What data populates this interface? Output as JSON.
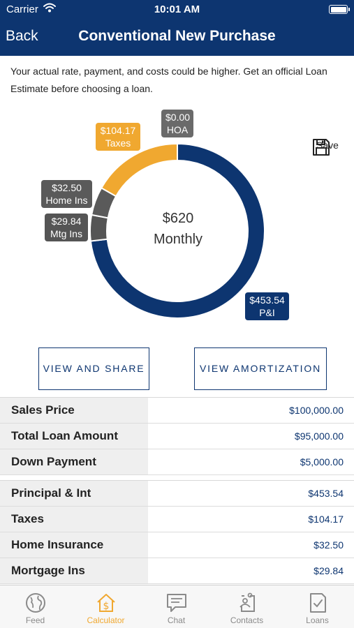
{
  "status_bar": {
    "carrier": "Carrier",
    "time": "10:01 AM"
  },
  "nav": {
    "back_label": "Back",
    "title": "Conventional New Purchase"
  },
  "disclaimer": "Your actual rate, payment, and costs could be higher. Get an official Loan Estimate before choosing a loan.",
  "chart_data": {
    "type": "pie",
    "center_amount": "$620",
    "center_label": "Monthly",
    "slices": [
      {
        "label": "P&I",
        "value": 453.54,
        "display": "$453.54",
        "color": "#0d3570"
      },
      {
        "label": "Mtg Ins",
        "value": 29.84,
        "display": "$29.84",
        "color": "#555555"
      },
      {
        "label": "Home Ins",
        "value": 32.5,
        "display": "$32.50",
        "color": "#5a5a5a"
      },
      {
        "label": "Taxes",
        "value": 104.17,
        "display": "$104.17",
        "color": "#f0a830"
      },
      {
        "label": "HOA",
        "value": 0.0,
        "display": "$0.00",
        "color": "#6a6a6a"
      }
    ]
  },
  "save": {
    "label": "Save",
    "icon": "floppy-disk-icon"
  },
  "buttons": {
    "view_share": "VIEW AND SHARE",
    "view_amortization": "VIEW AMORTIZATION"
  },
  "loan_summary": [
    {
      "label": "Sales Price",
      "value": "$100,000.00"
    },
    {
      "label": "Total Loan Amount",
      "value": "$95,000.00"
    },
    {
      "label": "Down Payment",
      "value": "$5,000.00"
    }
  ],
  "payment_breakdown": [
    {
      "label": "Principal & Int",
      "value": "$453.54"
    },
    {
      "label": "Taxes",
      "value": "$104.17"
    },
    {
      "label": "Home Insurance",
      "value": "$32.50"
    },
    {
      "label": "Mortgage Ins",
      "value": "$29.84"
    }
  ],
  "tabs": [
    {
      "label": "Feed",
      "icon": "globe-icon",
      "active": false
    },
    {
      "label": "Calculator",
      "icon": "house-dollar-icon",
      "active": true
    },
    {
      "label": "Chat",
      "icon": "chat-bubble-icon",
      "active": false
    },
    {
      "label": "Contacts",
      "icon": "contacts-icon",
      "active": false
    },
    {
      "label": "Loans",
      "icon": "document-check-icon",
      "active": false
    }
  ],
  "colors": {
    "brand_navy": "#0d3570",
    "accent_gold": "#f0a830",
    "row_gray": "#efefef"
  }
}
